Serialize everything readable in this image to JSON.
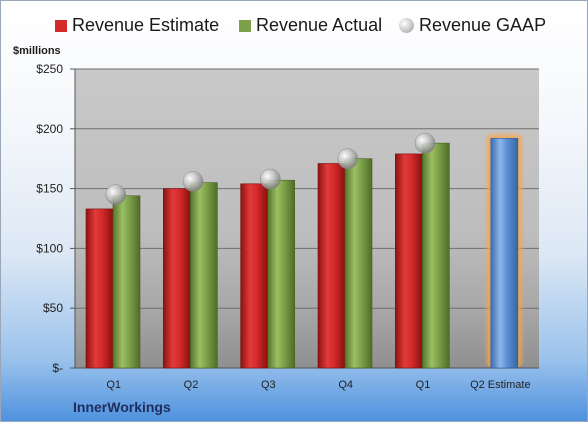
{
  "chart_data": {
    "type": "bar",
    "categories": [
      "Q1",
      "Q2",
      "Q3",
      "Q4",
      "Q1",
      "Q2 Estimate"
    ],
    "series": [
      {
        "name": "Revenue Estimate",
        "values": [
          133,
          150,
          154,
          171,
          179,
          null
        ],
        "color": "#d42a2a"
      },
      {
        "name": "Revenue Actual",
        "values": [
          144,
          155,
          157,
          175,
          188,
          null
        ],
        "color": "#7da14a"
      },
      {
        "name": "Revenue GAAP",
        "values": [
          145,
          156,
          158,
          175,
          188,
          null
        ],
        "color": "#b8b8b8"
      },
      {
        "name": "Revenue Estimate",
        "values": [
          null,
          null,
          null,
          null,
          null,
          192
        ],
        "color": "#5b8fd6",
        "highlight": "#f5a64a"
      }
    ],
    "ylabel": "$millions",
    "ylim": [
      0,
      250
    ],
    "yticks": [
      0,
      50,
      100,
      150,
      200,
      250
    ],
    "ytick_labels": [
      "$-",
      "$50",
      "$100",
      "$150",
      "$200",
      "$250"
    ],
    "grid": true,
    "legend": "top"
  },
  "legend": {
    "estimate": "Revenue Estimate",
    "actual": "Revenue Actual",
    "gaap": "Revenue GAAP"
  },
  "footer": {
    "company": "InnerWorkings"
  }
}
